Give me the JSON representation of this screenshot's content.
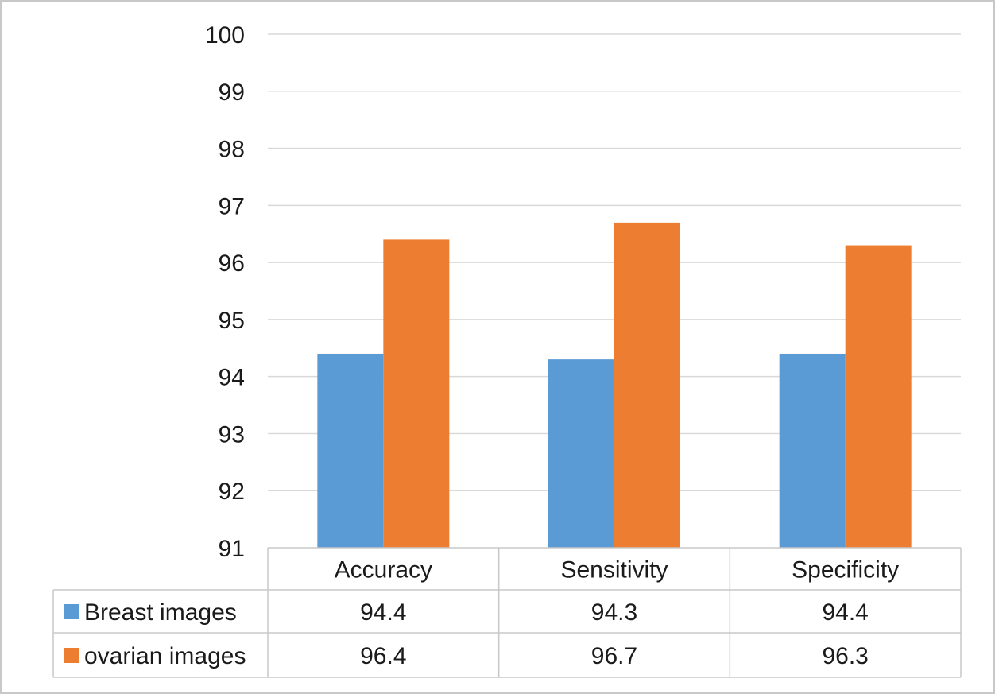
{
  "chart_data": {
    "type": "bar",
    "title": "",
    "xlabel": "",
    "ylabel": "",
    "ylim": [
      91,
      100
    ],
    "yticks": [
      "91",
      "92",
      "93",
      "94",
      "95",
      "96",
      "97",
      "98",
      "99",
      "100"
    ],
    "grid": true,
    "legend_position": "data-table-left",
    "categories": [
      "Accuracy",
      "Sensitivity",
      "Specificity"
    ],
    "series": [
      {
        "name": "Breast images",
        "color": "#5b9bd5",
        "values": [
          94.4,
          94.3,
          94.4
        ],
        "labels": [
          "94.4",
          "94.3",
          "94.4"
        ]
      },
      {
        "name": "ovarian images",
        "color": "#ed7d31",
        "values": [
          96.4,
          96.7,
          96.3
        ],
        "labels": [
          "96.4",
          "96.7",
          "96.3"
        ]
      }
    ]
  }
}
